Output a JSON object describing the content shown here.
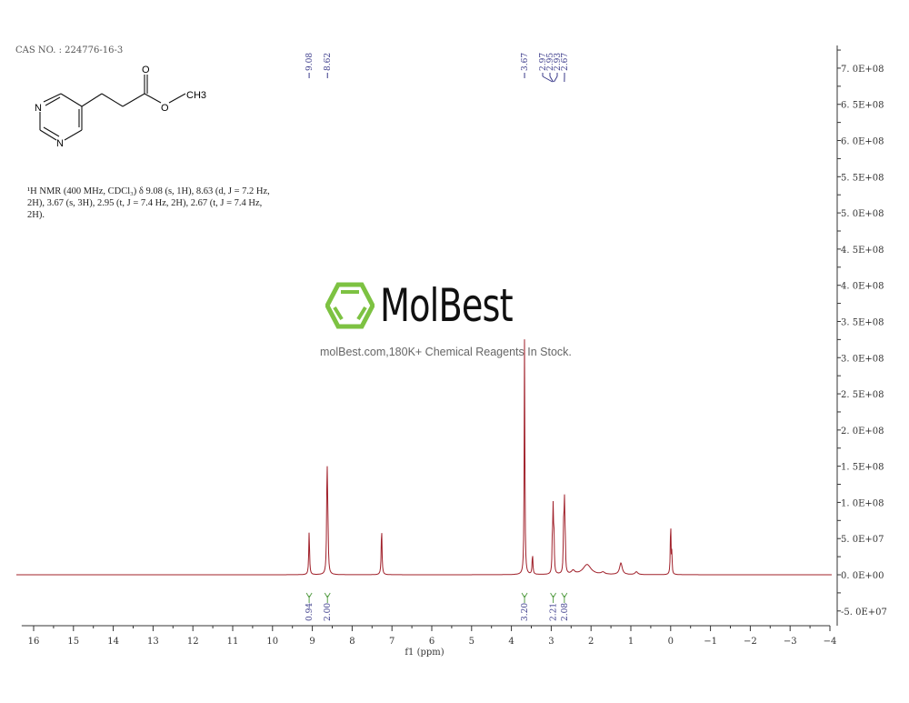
{
  "cas_label": "CAS NO. : 224776-16-3",
  "structure": {
    "atom_n1": "N",
    "atom_n2": "N",
    "atom_o_carbonyl": "O",
    "atom_o_ester": "O",
    "atom_ch3": "CH3"
  },
  "nmr_description": "¹H NMR (400 MHz, CDCl₃) δ 9.08 (s, 1H), 8.63 (d, J = 7.2 Hz, 2H), 3.67 (s, 3H), 2.95 (t, J = 7.4 Hz, 2H), 2.67 (t, J = 7.4 Hz, 2H).",
  "watermark": {
    "brand": "MolBest",
    "tagline": "molBest.com,180K+ Chemical Reagents In Stock.",
    "color": "#7dc242"
  },
  "chart_data": {
    "type": "line",
    "xlabel": "f1 (ppm)",
    "xlim": [
      16.3,
      -4.0
    ],
    "ylim": [
      -70000000,
      720000000
    ],
    "x_reversed": true,
    "x_ticks": [
      16,
      15,
      14,
      13,
      12,
      11,
      10,
      9,
      8,
      7,
      6,
      5,
      4,
      3,
      2,
      1,
      0,
      -1,
      -2,
      -3,
      -4
    ],
    "x_tick_labels": [
      "16",
      "15",
      "14",
      "13",
      "12",
      "11",
      "10",
      "9",
      "8",
      "7",
      "6",
      "5",
      "4",
      "3",
      "2",
      "1",
      "0",
      "−1",
      "−2",
      "−3",
      "−4"
    ],
    "y_ticks": [
      700000000,
      650000000,
      600000000,
      550000000,
      500000000,
      450000000,
      400000000,
      350000000,
      300000000,
      250000000,
      200000000,
      150000000,
      100000000,
      50000000,
      0,
      -50000000
    ],
    "y_tick_labels": [
      "7. 0E+08",
      "6. 5E+08",
      "6. 0E+08",
      "5. 5E+08",
      "5. 0E+08",
      "4. 5E+08",
      "4. 0E+08",
      "3. 5E+08",
      "3. 0E+08",
      "2. 5E+08",
      "2. 0E+08",
      "1. 5E+08",
      "1. 0E+08",
      "5. 0E+07",
      "0. 0E+00",
      "-5. 0E+07"
    ],
    "y_axis_position": "right",
    "line_color": "#a0202a",
    "peaks": [
      {
        "ppm": 9.08,
        "height": 60000000,
        "width": 0.012
      },
      {
        "ppm": 8.63,
        "height": 145000000,
        "width": 0.012
      },
      {
        "ppm": 8.61,
        "height": 60000000,
        "width": 0.012
      },
      {
        "ppm": 7.26,
        "height": 65000000,
        "width": 0.012
      },
      {
        "ppm": 3.67,
        "height": 330000000,
        "width": 0.01
      },
      {
        "ppm": 3.47,
        "height": 28000000,
        "width": 0.012
      },
      {
        "ppm": 2.97,
        "height": 50000000,
        "width": 0.01
      },
      {
        "ppm": 2.95,
        "height": 85000000,
        "width": 0.01
      },
      {
        "ppm": 2.93,
        "height": 45000000,
        "width": 0.01
      },
      {
        "ppm": 2.69,
        "height": 55000000,
        "width": 0.01
      },
      {
        "ppm": 2.67,
        "height": 98000000,
        "width": 0.01
      },
      {
        "ppm": 2.65,
        "height": 50000000,
        "width": 0.01
      },
      {
        "ppm": 2.45,
        "height": 5000000,
        "width": 0.05
      },
      {
        "ppm": 2.1,
        "height": 14000000,
        "width": 0.12
      },
      {
        "ppm": 1.7,
        "height": 3000000,
        "width": 0.05
      },
      {
        "ppm": 1.25,
        "height": 16000000,
        "width": 0.04
      },
      {
        "ppm": 0.86,
        "height": 4000000,
        "width": 0.04
      },
      {
        "ppm": 0.0,
        "height": 74000000,
        "width": 0.01
      },
      {
        "ppm": -0.03,
        "height": 30000000,
        "width": 0.008
      }
    ],
    "peak_labels": [
      {
        "ppm": 9.08,
        "label": "9.08"
      },
      {
        "ppm": 8.62,
        "label": "8.62"
      },
      {
        "ppm": 3.67,
        "label": "3.67"
      },
      {
        "ppm": 2.97,
        "label": "2.97"
      },
      {
        "ppm": 2.95,
        "label": "2.95"
      },
      {
        "ppm": 2.93,
        "label": "2.93"
      },
      {
        "ppm": 2.67,
        "label": "2.67"
      }
    ],
    "integrations": [
      {
        "ppm": 9.08,
        "value": "0.94"
      },
      {
        "ppm": 8.62,
        "value": "2.00"
      },
      {
        "ppm": 3.67,
        "value": "3.20"
      },
      {
        "ppm": 2.95,
        "value": "2.21"
      },
      {
        "ppm": 2.67,
        "value": "2.08"
      }
    ]
  }
}
